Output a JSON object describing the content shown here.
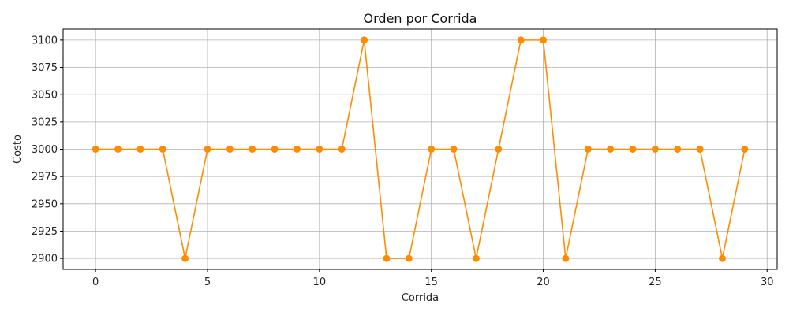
{
  "chart_data": {
    "type": "line",
    "title": "Orden por Corrida",
    "xlabel": "Corrida",
    "ylabel": "Costo",
    "x": [
      0,
      1,
      2,
      3,
      4,
      5,
      6,
      7,
      8,
      9,
      10,
      11,
      12,
      13,
      14,
      15,
      16,
      17,
      18,
      19,
      20,
      21,
      22,
      23,
      24,
      25,
      26,
      27,
      28,
      29
    ],
    "series": [
      {
        "color": "#ff8c00",
        "marker": "circle",
        "values": [
          3000,
          3000,
          3000,
          3000,
          2900,
          3000,
          3000,
          3000,
          3000,
          3000,
          3000,
          3000,
          3100,
          2900,
          2900,
          3000,
          3000,
          2900,
          3000,
          3100,
          3100,
          2900,
          3000,
          3000,
          3000,
          3000,
          3000,
          3000,
          2900,
          3000
        ]
      }
    ],
    "xlim": [
      -1.45,
      30.45
    ],
    "ylim": [
      2890,
      3110
    ],
    "xticks": [
      0,
      5,
      10,
      15,
      20,
      25,
      30
    ],
    "yticks": [
      2900,
      2925,
      2950,
      2975,
      3000,
      3025,
      3050,
      3075,
      3100
    ],
    "grid": true,
    "legend": "none"
  }
}
